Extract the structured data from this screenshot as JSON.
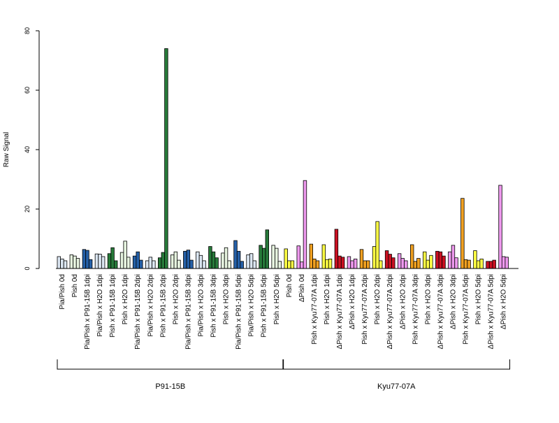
{
  "chart_data": {
    "type": "bar",
    "ylabel": "Raw Signal",
    "ylim": [
      0,
      80
    ],
    "yticks": [
      "0",
      "20",
      "40",
      "60",
      "80"
    ],
    "groups": [
      {
        "name": "P91-15B",
        "samples": [
          {
            "label": "Pia/Pish 0d",
            "values": [
              4.0,
              3.2,
              2.6
            ],
            "colors": [
              "#dbe6f2",
              "#dbe6f2",
              "#dbe6f2"
            ]
          },
          {
            "label": "Pish 0d",
            "values": [
              4.6,
              4.2,
              3.4
            ],
            "colors": [
              "#e6f3df",
              "#e6f3df",
              "#e6f3df"
            ]
          },
          {
            "label": "Pia/Pish x P91-15B 1dpi",
            "values": [
              6.4,
              6.1,
              3.0
            ],
            "colors": [
              "#2560a8",
              "#2560a8",
              "#2560a8"
            ]
          },
          {
            "label": "Pia/Pish x H2O 1dpi",
            "values": [
              4.9,
              4.8,
              4.0
            ],
            "colors": [
              "#dbe6f2",
              "#dbe6f2",
              "#dbe6f2"
            ]
          },
          {
            "label": "Pish x P91-15B 1dpi",
            "values": [
              5.0,
              7.0,
              2.6
            ],
            "colors": [
              "#277a3a",
              "#277a3a",
              "#277a3a"
            ]
          },
          {
            "label": "Pish x H2O 1dpi",
            "values": [
              5.4,
              9.2,
              3.8
            ],
            "colors": [
              "#e6f3df",
              "#e6f3df",
              "#e6f3df"
            ]
          },
          {
            "label": "Pia/Pish x P91-15B 2dpi",
            "values": [
              4.2,
              5.6,
              2.8
            ],
            "colors": [
              "#2560a8",
              "#2560a8",
              "#2560a8"
            ]
          },
          {
            "label": "Pia/Pish x H2O 2dpi",
            "values": [
              2.6,
              3.8,
              2.6
            ],
            "colors": [
              "#dbe6f2",
              "#dbe6f2",
              "#dbe6f2"
            ]
          },
          {
            "label": "Pish x P91-15B 2dpi",
            "values": [
              3.6,
              5.4,
              74.0
            ],
            "colors": [
              "#277a3a",
              "#277a3a",
              "#277a3a"
            ]
          },
          {
            "label": "Pish x H2O 2dpi",
            "values": [
              4.6,
              5.6,
              2.8
            ],
            "colors": [
              "#e6f3df",
              "#e6f3df",
              "#e6f3df"
            ]
          },
          {
            "label": "Pia/Pish x P91-15B 3dpi",
            "values": [
              5.8,
              6.2,
              2.8
            ],
            "colors": [
              "#2560a8",
              "#2560a8",
              "#2560a8"
            ]
          },
          {
            "label": "Pia/Pish x H2O 3dpi",
            "values": [
              5.6,
              4.4,
              2.6
            ],
            "colors": [
              "#dbe6f2",
              "#dbe6f2",
              "#dbe6f2"
            ]
          },
          {
            "label": "Pish x P91-15B 3dpi",
            "values": [
              7.4,
              5.6,
              3.6
            ],
            "colors": [
              "#277a3a",
              "#277a3a",
              "#277a3a"
            ]
          },
          {
            "label": "Pish x H2O 3dpi",
            "values": [
              5.2,
              7.0,
              2.6
            ],
            "colors": [
              "#e6f3df",
              "#e6f3df",
              "#e6f3df"
            ]
          },
          {
            "label": "Pia/Pish x P91-15B 5dpi",
            "values": [
              9.4,
              5.8,
              2.4
            ],
            "colors": [
              "#2560a8",
              "#2560a8",
              "#2560a8"
            ]
          },
          {
            "label": "Pia/Pish x H2O 5dpi",
            "values": [
              4.6,
              5.0,
              2.6
            ],
            "colors": [
              "#dbe6f2",
              "#dbe6f2",
              "#dbe6f2"
            ]
          },
          {
            "label": "Pish x P91-15B 5dpi",
            "values": [
              7.8,
              6.8,
              13.0
            ],
            "colors": [
              "#277a3a",
              "#277a3a",
              "#277a3a"
            ]
          },
          {
            "label": "Pish x H2O 5dpi",
            "values": [
              7.8,
              6.8,
              2.4
            ],
            "colors": [
              "#e6f3df",
              "#e6f3df",
              "#e6f3df"
            ]
          }
        ]
      },
      {
        "name": "Kyu77-07A",
        "samples": [
          {
            "label": "Pish 0d",
            "values": [
              6.6,
              2.6,
              2.6
            ],
            "colors": [
              "#ffff44",
              "#ffff44",
              "#ffff44"
            ]
          },
          {
            "label": "ΔPish 0d",
            "values": [
              7.6,
              2.2,
              29.6
            ],
            "colors": [
              "#ee99ee",
              "#ee99ee",
              "#ee99ee"
            ]
          },
          {
            "label": "Pish x Kyu77-07A 1dpi",
            "values": [
              8.2,
              3.2,
              2.6
            ],
            "colors": [
              "#f0a020",
              "#f0a020",
              "#f0a020"
            ]
          },
          {
            "label": "Pish x H2O 1dpi",
            "values": [
              8.0,
              3.0,
              3.2
            ],
            "colors": [
              "#ffff44",
              "#ffff44",
              "#ffff44"
            ]
          },
          {
            "label": "ΔPish x Kyu77-07A 1dpi",
            "values": [
              13.2,
              4.2,
              3.8
            ],
            "colors": [
              "#cc1122",
              "#cc1122",
              "#cc1122"
            ]
          },
          {
            "label": "ΔPish x H2O 1dpi",
            "values": [
              4.0,
              2.6,
              3.2
            ],
            "colors": [
              "#ee99ee",
              "#ee99ee",
              "#ee99ee"
            ]
          },
          {
            "label": "Pish x Kyu77-07A 2dpi",
            "values": [
              6.4,
              2.6,
              2.6
            ],
            "colors": [
              "#f0a020",
              "#f0a020",
              "#f0a020"
            ]
          },
          {
            "label": "Pish x H2O 2dpi",
            "values": [
              7.4,
              15.8,
              2.6
            ],
            "colors": [
              "#ffff44",
              "#ffff44",
              "#ffff44"
            ]
          },
          {
            "label": "ΔPish x Kyu77-07A 2dpi",
            "values": [
              6.0,
              4.8,
              3.6
            ],
            "colors": [
              "#cc1122",
              "#cc1122",
              "#cc1122"
            ]
          },
          {
            "label": "ΔPish x H2O 2dpi",
            "values": [
              5.0,
              3.4,
              2.6
            ],
            "colors": [
              "#ee99ee",
              "#ee99ee",
              "#ee99ee"
            ]
          },
          {
            "label": "Pish x Kyu77-07A 3dpi",
            "values": [
              8.0,
              2.4,
              3.4
            ],
            "colors": [
              "#f0a020",
              "#f0a020",
              "#f0a020"
            ]
          },
          {
            "label": "Pish x H2O 3dpi",
            "values": [
              5.6,
              2.8,
              4.4
            ],
            "colors": [
              "#ffff44",
              "#ffff44",
              "#ffff44"
            ]
          },
          {
            "label": "ΔPish x Kyu77-07A 3dpi",
            "values": [
              5.8,
              5.6,
              4.2
            ],
            "colors": [
              "#cc1122",
              "#cc1122",
              "#cc1122"
            ]
          },
          {
            "label": "ΔPish x H2O 3dpi",
            "values": [
              5.6,
              7.8,
              3.6
            ],
            "colors": [
              "#ee99ee",
              "#ee99ee",
              "#ee99ee"
            ]
          },
          {
            "label": "Pish x Kyu77-07A 5dpi",
            "values": [
              23.6,
              3.0,
              2.8
            ],
            "colors": [
              "#f0a020",
              "#f0a020",
              "#f0a020"
            ]
          },
          {
            "label": "Pish x H2O 5dpi",
            "values": [
              6.0,
              2.6,
              3.2
            ],
            "colors": [
              "#ffff44",
              "#ffff44",
              "#ffff44"
            ]
          },
          {
            "label": "ΔPish x Kyu77-07A 5dpi",
            "values": [
              2.4,
              2.4,
              2.8
            ],
            "colors": [
              "#cc1122",
              "#cc1122",
              "#cc1122"
            ]
          },
          {
            "label": "ΔPish x H2O 5dpi",
            "values": [
              28.0,
              4.0,
              3.8
            ],
            "colors": [
              "#ee99ee",
              "#ee99ee",
              "#ee99ee"
            ]
          }
        ]
      }
    ]
  }
}
